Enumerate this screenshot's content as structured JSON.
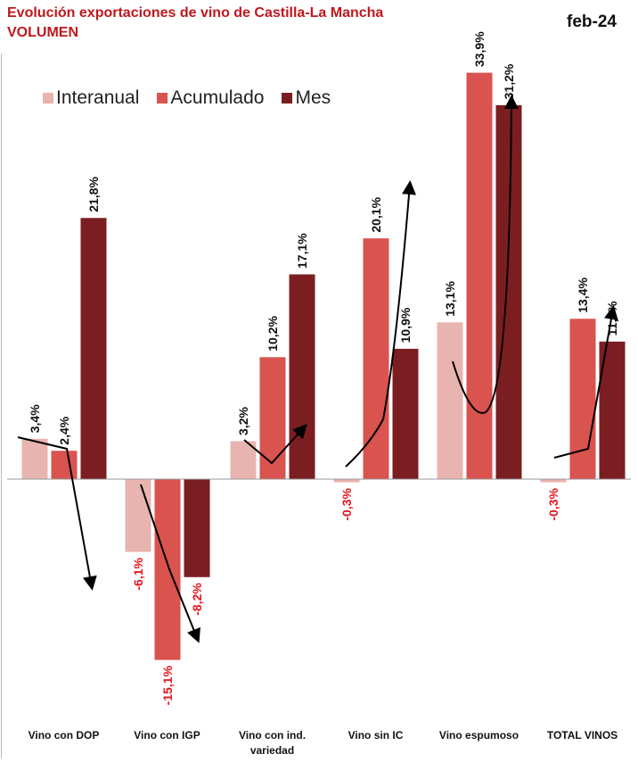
{
  "title_line1": "Evolución exportaciones de vino de Castilla-La Mancha",
  "title_line2": "VOLUMEN",
  "date": "feb-24",
  "colors": {
    "interanual": "#e8b4b0",
    "acumulado": "#d9534f",
    "mes": "#7a1e22",
    "negative_label": "#e8141b",
    "positive_label": "#111111",
    "title": "#c0171c"
  },
  "chart_data": {
    "type": "bar",
    "title": "Evolución exportaciones de vino de Castilla-La Mancha VOLUMEN",
    "legend_position": "top-left",
    "grid": false,
    "categories": [
      [
        "Vino con DOP"
      ],
      [
        "Vino con IGP"
      ],
      [
        "Vino con ind.",
        "variedad"
      ],
      [
        "Vino sin IC"
      ],
      [
        "Vino espumoso"
      ],
      [
        "TOTAL VINOS"
      ]
    ],
    "series": [
      {
        "name": "Interanual",
        "values": [
          3.4,
          -6.1,
          3.2,
          -0.3,
          13.1,
          -0.3
        ],
        "labels": [
          "3,4%",
          "-6,1%",
          "3,2%",
          "-0,3%",
          "13,1%",
          "-0,3%"
        ]
      },
      {
        "name": "Acumulado",
        "values": [
          2.4,
          -15.1,
          10.2,
          20.1,
          33.9,
          13.4
        ],
        "labels": [
          "2,4%",
          "-15,1%",
          "10,2%",
          "20,1%",
          "33,9%",
          "13,4%"
        ]
      },
      {
        "name": "Mes",
        "values": [
          21.8,
          -8.2,
          17.1,
          10.9,
          31.2,
          11.5
        ],
        "labels": [
          "21,8%",
          "-8,2%",
          "17,1%",
          "10,9%",
          "31,2%",
          "11,5%"
        ]
      }
    ],
    "ylim": [
      -17,
      36
    ]
  }
}
